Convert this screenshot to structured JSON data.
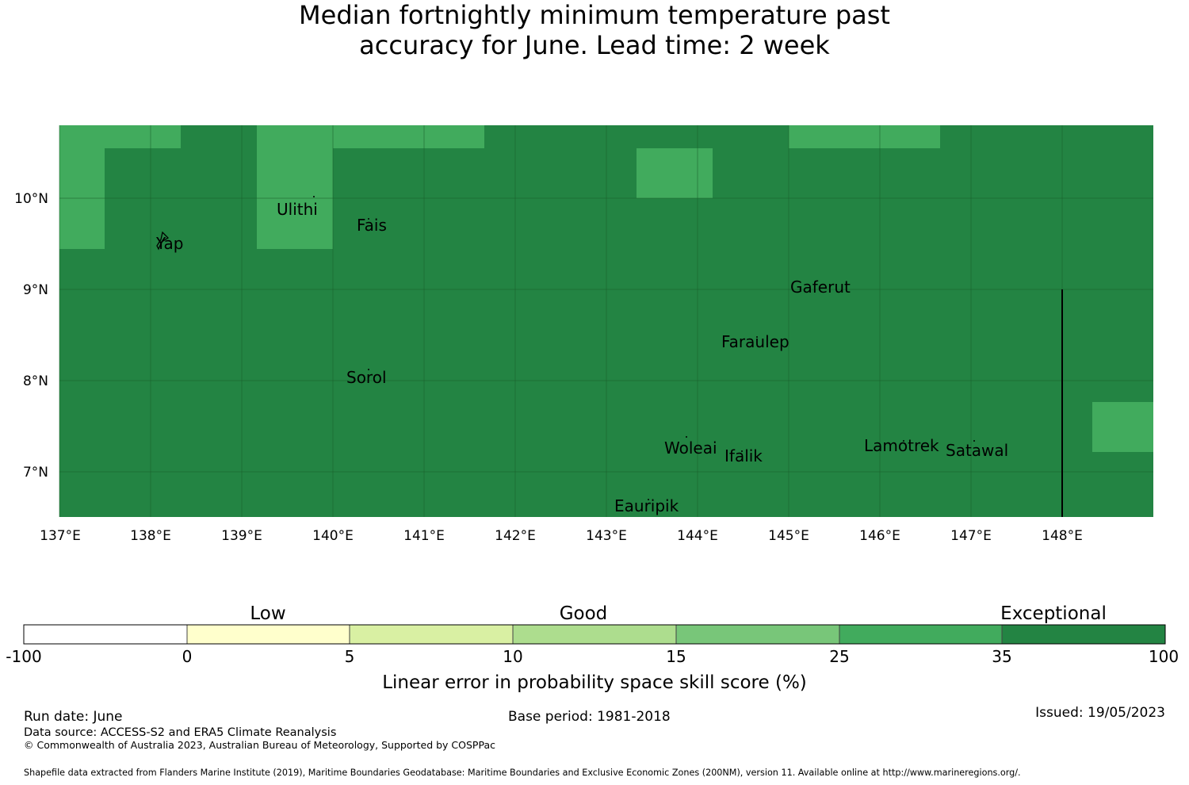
{
  "title": {
    "line1": "Median fortnightly minimum temperature past",
    "line2": "accuracy for June. Lead time: 2 week"
  },
  "map": {
    "lon_range": [
      137,
      149
    ],
    "lat_range": [
      6.5,
      10.8
    ],
    "x_ticks": [
      "137°E",
      "138°E",
      "139°E",
      "140°E",
      "141°E",
      "142°E",
      "143°E",
      "144°E",
      "145°E",
      "146°E",
      "147°E",
      "148°E"
    ],
    "y_ticks": [
      "10°N",
      "9°N",
      "8°N",
      "7°N"
    ],
    "colors": {
      "exceptional": "#238443",
      "very_good": "#41ab5d"
    },
    "places": [
      "Ulithi",
      "Yap",
      "Fais",
      "Gaferut",
      "Faraulep",
      "Sorol",
      "Woleai",
      "Ifalik",
      "Lamotrek",
      "Satawal",
      "Eauripik"
    ]
  },
  "legend": {
    "categories": [
      "Low",
      "Good",
      "Exceptional"
    ],
    "bins": [
      {
        "from": -100,
        "to": 0,
        "color": "#ffffff"
      },
      {
        "from": 0,
        "to": 5,
        "color": "#ffffcc"
      },
      {
        "from": 5,
        "to": 10,
        "color": "#d9f0a3"
      },
      {
        "from": 10,
        "to": 15,
        "color": "#addd8e"
      },
      {
        "from": 15,
        "to": 25,
        "color": "#78c679"
      },
      {
        "from": 25,
        "to": 35,
        "color": "#41ab5d"
      },
      {
        "from": 35,
        "to": 100,
        "color": "#238443"
      }
    ],
    "tick_labels": [
      "-100",
      "0",
      "5",
      "10",
      "15",
      "25",
      "35",
      "100"
    ],
    "xlabel": "Linear error in probability space skill score (%)"
  },
  "footer": {
    "run_date": "Run date: June",
    "base_period": "Base period: 1981-2018",
    "issued": "Issued: 19/05/2023",
    "data_source": "Data source: ACCESS-S2 and ERA5 Climate Reanalysis",
    "copyright": "© Commonwealth of Australia 2023, Australian Bureau of Meteorology, Supported by COSPPac",
    "shapefile": "Shapefile data extracted from Flanders Marine Institute (2019), Maritime Boundaries Geodatabase: Maritime Boundaries and Exclusive Economic Zones (200NM), version 11. Available online at http://www.marineregions.org/."
  }
}
